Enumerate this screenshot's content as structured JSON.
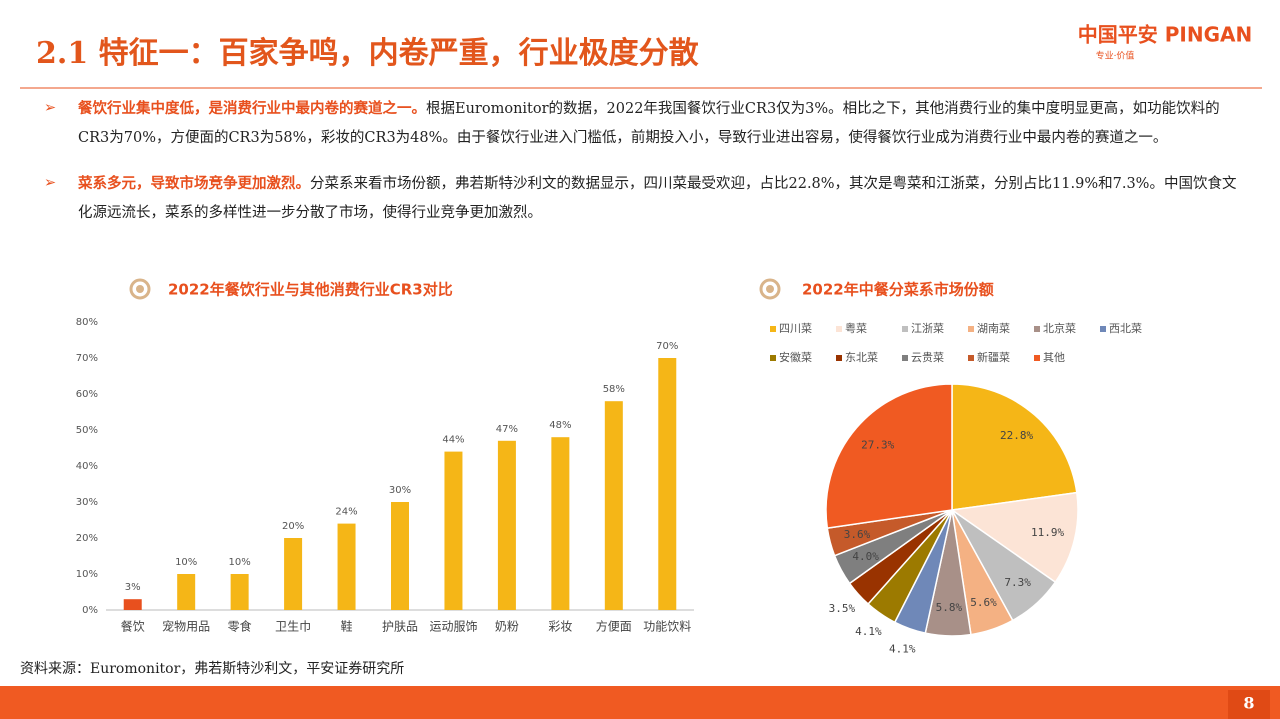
{
  "header": {
    "title": "2.1 特征一：百家争鸣，内卷严重，行业极度分散",
    "logo": "中国平安 PINGAN",
    "slogan": "专业·价值"
  },
  "bullets": [
    {
      "lead": "餐饮行业集中度低，是消费行业中最内卷的赛道之一。",
      "text": "根据Euromonitor的数据，2022年我国餐饮行业CR3仅为3%。相比之下，其他消费行业的集中度明显更高，如功能饮料的CR3为70%，方便面的CR3为58%，彩妆的CR3为48%。由于餐饮行业进入门槛低，前期投入小，导致行业进出容易，使得餐饮行业成为消费行业中最内卷的赛道之一。"
    },
    {
      "lead": "菜系多元，导致市场竞争更加激烈。",
      "text": "分菜系来看市场份额，弗若斯特沙利文的数据显示，四川菜最受欢迎，占比22.8%，其次是粤菜和江浙菜，分别占比11.9%和7.3%。中国饮食文化源远流长，菜系的多样性进一步分散了市场，使得行业竞争更加激烈。"
    }
  ],
  "chart_data": [
    {
      "type": "bar",
      "title": "2022年餐饮行业与其他消费行业CR3对比",
      "categories": [
        "餐饮",
        "宠物用品",
        "零食",
        "卫生巾",
        "鞋",
        "护肤品",
        "运动服饰",
        "奶粉",
        "彩妆",
        "方便面",
        "功能饮料"
      ],
      "values": [
        3,
        10,
        10,
        20,
        24,
        30,
        44,
        47,
        48,
        58,
        70
      ],
      "value_labels": [
        "3%",
        "10%",
        "10%",
        "20%",
        "24%",
        "30%",
        "44%",
        "47%",
        "48%",
        "58%",
        "70%"
      ],
      "colors": [
        "#e8501e",
        "#f5b617",
        "#f5b617",
        "#f5b617",
        "#f5b617",
        "#f5b617",
        "#f5b617",
        "#f5b617",
        "#f5b617",
        "#f5b617",
        "#f5b617"
      ],
      "ylim": [
        0,
        80
      ],
      "yticks": [
        {
          "value": 0,
          "label": "0%"
        },
        {
          "value": 10,
          "label": "10%"
        },
        {
          "value": 20,
          "label": "20%"
        },
        {
          "value": 30,
          "label": "30%"
        },
        {
          "value": 40,
          "label": "40%"
        },
        {
          "value": 50,
          "label": "50%"
        },
        {
          "value": 60,
          "label": "60%"
        },
        {
          "value": 70,
          "label": "70%"
        },
        {
          "value": 80,
          "label": "80%"
        }
      ],
      "grid": false
    },
    {
      "type": "pie",
      "title": "2022年中餐分菜系市场份额",
      "categories": [
        "四川菜",
        "粤菜",
        "江浙菜",
        "湖南菜",
        "北京菜",
        "西北菜",
        "安徽菜",
        "东北菜",
        "云贵菜",
        "新疆菜",
        "其他"
      ],
      "values": [
        22.8,
        11.9,
        7.3,
        5.6,
        5.8,
        4.1,
        4.1,
        3.5,
        4.0,
        3.6,
        27.3
      ],
      "value_labels": [
        "22.8%",
        "11.9%",
        "7.3%",
        "5.6%",
        "5.8%",
        "4.1%",
        "4.1%",
        "3.5%",
        "4.0%",
        "3.6%",
        "27.3%"
      ],
      "colors": [
        "#f5b617",
        "#fce4d6",
        "#bfbfbf",
        "#f4b183",
        "#a89088",
        "#6f88b8",
        "#9c7a00",
        "#993300",
        "#7f7f7f",
        "#c55a2a",
        "#f05a22"
      ]
    }
  ],
  "source": "资料来源：Euromonitor，弗若斯特沙利文，平安证券研究所",
  "page_number": "8"
}
